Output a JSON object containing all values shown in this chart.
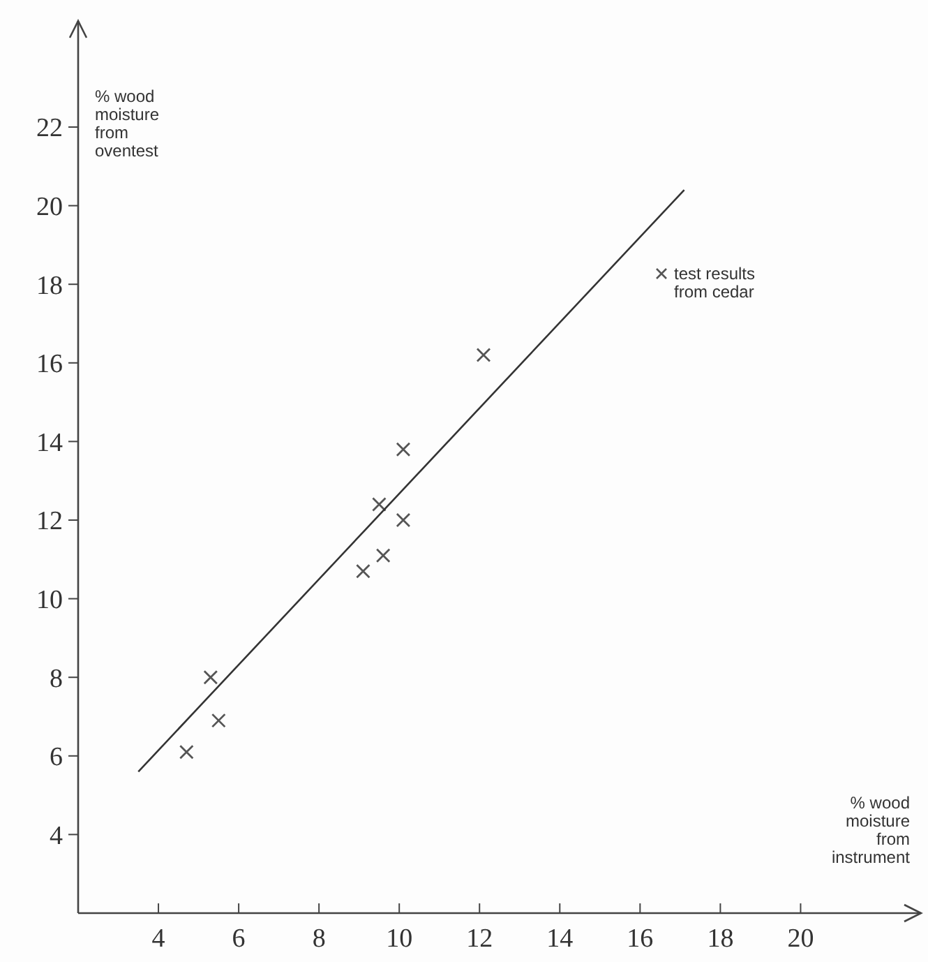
{
  "chart_data": {
    "type": "scatter",
    "xlabel": "% wood moisture from instrument",
    "ylabel": "% wood moisture from oventest",
    "xlim": [
      2,
      23
    ],
    "ylim": [
      2,
      24.7
    ],
    "xticks": [
      4,
      6,
      8,
      10,
      12,
      14,
      16,
      18,
      20
    ],
    "yticks": [
      4,
      6,
      8,
      10,
      12,
      14,
      16,
      18,
      20,
      22
    ],
    "grid": false,
    "legend": "right",
    "series": [
      {
        "name": "test results from cedar",
        "marker": "cross",
        "color": "#555555",
        "x": [
          4.7,
          5.5,
          5.3,
          9.1,
          9.6,
          9.5,
          10.1,
          10.1,
          12.1
        ],
        "values": [
          6.1,
          6.9,
          8.0,
          10.7,
          11.1,
          12.4,
          12.0,
          13.8,
          16.2
        ]
      },
      {
        "type": "line",
        "color": "#333333",
        "x": [
          3.5,
          17.1
        ],
        "values": [
          5.6,
          20.4
        ]
      }
    ]
  }
}
